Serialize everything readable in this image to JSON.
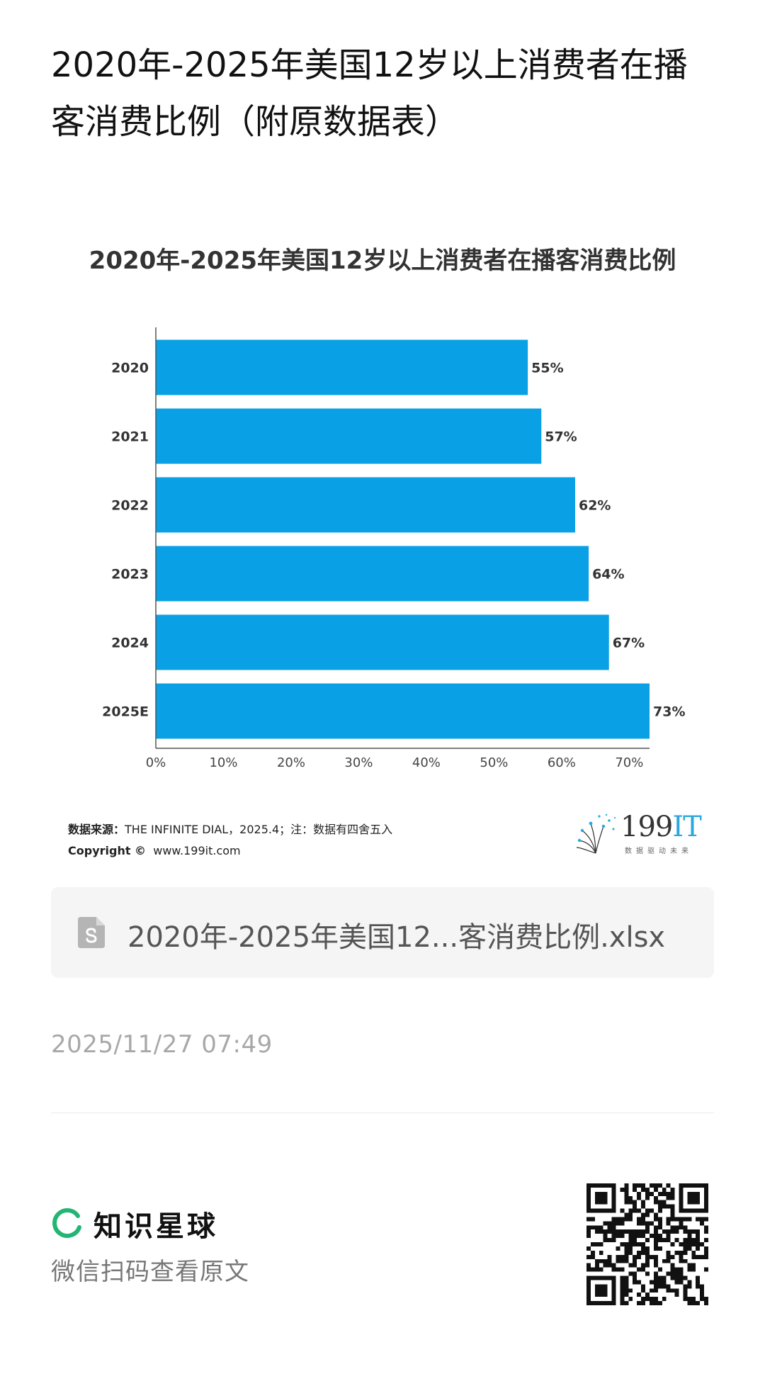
{
  "post": {
    "title": "2020年-2025年美国12岁以上消费者在播客消费比例（附原数据表）"
  },
  "chart_data": {
    "type": "bar",
    "orientation": "horizontal",
    "title": "2020年-2025年美国12岁以上消费者在播客消费比例",
    "categories": [
      "2020",
      "2021",
      "2022",
      "2023",
      "2024",
      "2025E"
    ],
    "values": [
      55,
      57,
      62,
      64,
      67,
      73
    ],
    "value_labels": [
      "55%",
      "57%",
      "62%",
      "64%",
      "67%",
      "73%"
    ],
    "xlim": [
      0,
      73
    ],
    "x_ticks": [
      0,
      10,
      20,
      30,
      40,
      50,
      60,
      70
    ],
    "x_tick_labels": [
      "0%",
      "10%",
      "20%",
      "30%",
      "40%",
      "50%",
      "60%",
      "70%"
    ],
    "xlabel": "",
    "ylabel": "",
    "grid": false,
    "bar_color": "#0aa0e6"
  },
  "chart_footer": {
    "source_label": "数据来源：",
    "source_text": "THE INFINITE DIAL，2025.4；注：数据有四舍五入",
    "copyright_label": "Copyright ©",
    "copyright_text": "www.199it.com",
    "brand_main": "199",
    "brand_accent": "IT",
    "brand_tagline": "数据驱动未来"
  },
  "attachment": {
    "file_name": "2020年-2025年美国12...客消费比例.xlsx",
    "icon": "spreadsheet-file-icon"
  },
  "meta": {
    "timestamp": "2025/11/27 07:49"
  },
  "footer": {
    "app_name": "知识星球",
    "scan_hint": "微信扫码查看原文",
    "accent_color": "#22b573"
  }
}
